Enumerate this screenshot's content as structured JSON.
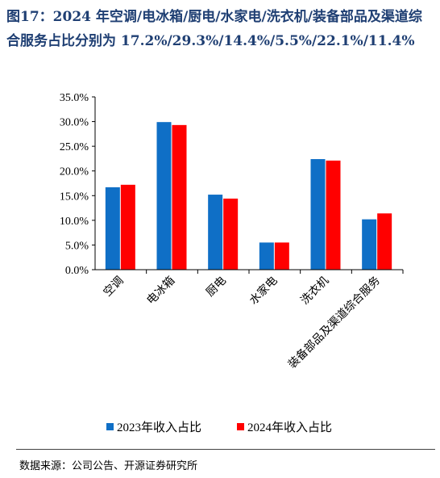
{
  "title": "图17：2024 年空调/电冰箱/厨电/水家电/洗衣机/装备部品及渠道综合服务占比分别为 17.2%/29.3%/14.4%/5.5%/22.1%/11.4%",
  "source": "数据来源：公司公告、开源证券研究所",
  "colors": {
    "series_2023": "#0f6fc6",
    "series_2024": "#ff0000",
    "axis": "#000000"
  },
  "chart_data": {
    "type": "bar",
    "categories": [
      "空调",
      "电冰箱",
      "厨电",
      "水家电",
      "洗衣机",
      "装备部品及渠道综合服务"
    ],
    "series": [
      {
        "name": "2023年收入占比",
        "values": [
          16.7,
          29.9,
          15.2,
          5.5,
          22.4,
          10.2
        ]
      },
      {
        "name": "2024年收入占比",
        "values": [
          17.2,
          29.3,
          14.4,
          5.5,
          22.1,
          11.4
        ]
      }
    ],
    "yticks": [
      "0.0%",
      "5.0%",
      "10.0%",
      "15.0%",
      "20.0%",
      "25.0%",
      "30.0%",
      "35.0%"
    ],
    "ylim": [
      0,
      35
    ],
    "grid": false,
    "legend": "bottom"
  }
}
